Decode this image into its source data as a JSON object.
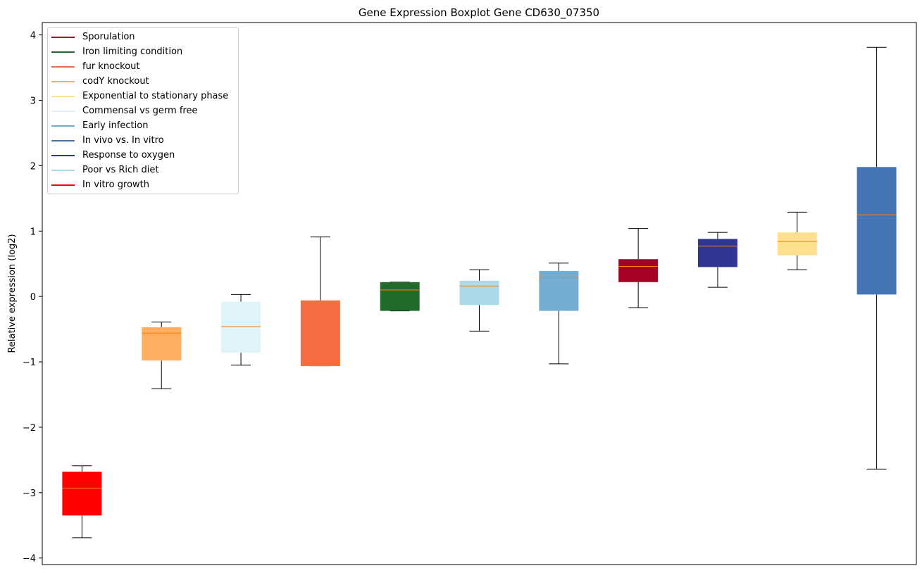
{
  "chart_data": {
    "type": "box",
    "title": "Gene Expression Boxplot Gene CD630_07350",
    "xlabel": "",
    "ylabel": "Relative expression (log2)",
    "ylim": [
      -4.1,
      4.19
    ],
    "yticks": [
      -4,
      -3,
      -2,
      -1,
      0,
      1,
      2,
      3,
      4
    ],
    "ytick_labels": [
      "−4",
      "−3",
      "−2",
      "−1",
      "0",
      "1",
      "2",
      "3",
      "4"
    ],
    "median_color": "#ff7f0e",
    "legend_position": "top-left",
    "series": [
      {
        "name": "In vitro growth",
        "color": "#ff0000",
        "whislo": -3.69,
        "q1": -3.35,
        "med": -2.93,
        "q3": -2.68,
        "whishi": -2.59
      },
      {
        "name": "codY knockout",
        "color": "#fdae61",
        "whislo": -1.41,
        "q1": -0.98,
        "med": -0.56,
        "q3": -0.47,
        "whishi": -0.39
      },
      {
        "name": "Commensal vs germ free",
        "color": "#e0f3f8",
        "whislo": -1.05,
        "q1": -0.86,
        "med": -0.46,
        "q3": -0.08,
        "whishi": 0.03
      },
      {
        "name": "fur knockout",
        "color": "#f46d43",
        "whislo": -1.06,
        "q1": -1.06,
        "med": -1.06,
        "q3": -0.06,
        "whishi": 0.91
      },
      {
        "name": "Iron limiting condition",
        "color": "#236b2c",
        "whislo": -0.22,
        "q1": -0.22,
        "med": 0.1,
        "q3": 0.22,
        "whishi": 0.22
      },
      {
        "name": "Poor vs Rich diet",
        "color": "#abd9e9",
        "whislo": -0.53,
        "q1": -0.13,
        "med": 0.16,
        "q3": 0.24,
        "whishi": 0.41
      },
      {
        "name": "Early infection",
        "color": "#74add1",
        "whislo": -1.03,
        "q1": -0.22,
        "med": 0.29,
        "q3": 0.39,
        "whishi": 0.51
      },
      {
        "name": "Sporulation",
        "color": "#a50026",
        "whislo": -0.17,
        "q1": 0.22,
        "med": 0.46,
        "q3": 0.57,
        "whishi": 1.04
      },
      {
        "name": "Response to oxygen",
        "color": "#313695",
        "whislo": 0.14,
        "q1": 0.45,
        "med": 0.77,
        "q3": 0.88,
        "whishi": 0.98
      },
      {
        "name": "Exponential to stationary phase",
        "color": "#fee090",
        "whislo": 0.41,
        "q1": 0.63,
        "med": 0.84,
        "q3": 0.98,
        "whishi": 1.29
      },
      {
        "name": "In vivo vs. In vitro",
        "color": "#4575b4",
        "whislo": -2.64,
        "q1": 0.03,
        "med": 1.25,
        "q3": 1.98,
        "whishi": 3.81
      }
    ],
    "legend": [
      {
        "label": "Sporulation",
        "color": "#a50026"
      },
      {
        "label": "Iron limiting condition",
        "color": "#236b2c"
      },
      {
        "label": "fur knockout",
        "color": "#f46d43"
      },
      {
        "label": "codY knockout",
        "color": "#fdae61"
      },
      {
        "label": "Exponential to stationary phase",
        "color": "#fee090"
      },
      {
        "label": "Commensal vs germ free",
        "color": "#e0f3f8"
      },
      {
        "label": "Early infection",
        "color": "#74add1"
      },
      {
        "label": "In vivo vs. In vitro",
        "color": "#4575b4"
      },
      {
        "label": "Response to oxygen",
        "color": "#313695"
      },
      {
        "label": "Poor vs Rich diet",
        "color": "#abd9e9"
      },
      {
        "label": "In vitro growth",
        "color": "#ff0000"
      }
    ]
  }
}
